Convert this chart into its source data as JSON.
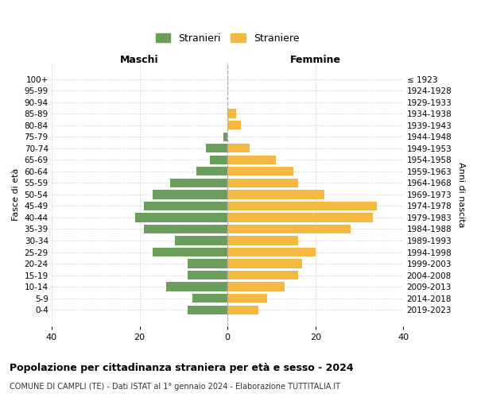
{
  "age_groups": [
    "0-4",
    "5-9",
    "10-14",
    "15-19",
    "20-24",
    "25-29",
    "30-34",
    "35-39",
    "40-44",
    "45-49",
    "50-54",
    "55-59",
    "60-64",
    "65-69",
    "70-74",
    "75-79",
    "80-84",
    "85-89",
    "90-94",
    "95-99",
    "100+"
  ],
  "birth_years": [
    "2019-2023",
    "2014-2018",
    "2009-2013",
    "2004-2008",
    "1999-2003",
    "1994-1998",
    "1989-1993",
    "1984-1988",
    "1979-1983",
    "1974-1978",
    "1969-1973",
    "1964-1968",
    "1959-1963",
    "1954-1958",
    "1949-1953",
    "1944-1948",
    "1939-1943",
    "1934-1938",
    "1929-1933",
    "1924-1928",
    "≤ 1923"
  ],
  "maschi": [
    9,
    8,
    14,
    9,
    9,
    17,
    12,
    19,
    21,
    19,
    17,
    13,
    7,
    4,
    5,
    1,
    0,
    0,
    0,
    0,
    0
  ],
  "femmine": [
    7,
    9,
    13,
    16,
    17,
    20,
    16,
    28,
    33,
    34,
    22,
    16,
    15,
    11,
    5,
    0,
    3,
    2,
    0,
    0,
    0
  ],
  "maschi_color": "#6a9e5a",
  "femmine_color": "#f5b942",
  "xlim": 40,
  "title": "Popolazione per cittadinanza straniera per età e sesso - 2024",
  "subtitle": "COMUNE DI CAMPLI (TE) - Dati ISTAT al 1° gennaio 2024 - Elaborazione TUTTITALIA.IT",
  "ylabel_left": "Fasce di età",
  "ylabel_right": "Anni di nascita",
  "label_maschi": "Maschi",
  "label_femmine": "Femmine",
  "legend_stranieri": "Stranieri",
  "legend_straniere": "Straniere",
  "bg_color": "#ffffff",
  "grid_color": "#cccccc"
}
